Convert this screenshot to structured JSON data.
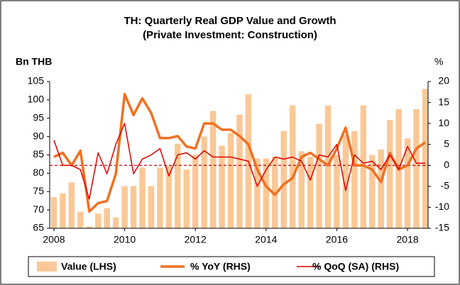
{
  "chart_data": {
    "type": "bar_line_combo",
    "title": "TH: Quarterly Real GDP Value and Growth",
    "subtitle": "(Private Investment: Construction)",
    "y_label": "Bn THB",
    "y2_label": "%",
    "x": [
      2008,
      2008.25,
      2008.5,
      2008.75,
      2009,
      2009.25,
      2009.5,
      2009.75,
      2010,
      2010.25,
      2010.5,
      2010.75,
      2011,
      2011.25,
      2011.5,
      2011.75,
      2012,
      2012.25,
      2012.5,
      2012.75,
      2013,
      2013.25,
      2013.5,
      2013.75,
      2014,
      2014.25,
      2014.5,
      2014.75,
      2015,
      2015.25,
      2015.5,
      2015.75,
      2016,
      2016.25,
      2016.5,
      2016.75,
      2017,
      2017.25,
      2017.5,
      2017.75,
      2018,
      2018.25,
      2018.5
    ],
    "xlim": [
      2007.88,
      2018.58
    ],
    "xticks": [
      2008,
      2010,
      2012,
      2014,
      2016,
      2018
    ],
    "ylim": [
      65,
      105
    ],
    "yticks": [
      65,
      70,
      75,
      80,
      85,
      90,
      95,
      100,
      105
    ],
    "y2lim": [
      -15,
      20
    ],
    "y2ticks": [
      -15,
      -10,
      -5,
      0,
      5,
      10,
      15,
      20
    ],
    "series": [
      {
        "name": "Value (LHS)",
        "kind": "bar",
        "color": "#fac896",
        "values": [
          73.5,
          74.5,
          77.5,
          69.5,
          65.5,
          69,
          70.5,
          68,
          76.5,
          76.5,
          81.5,
          76.5,
          81.5,
          82,
          88,
          81,
          85,
          90,
          97,
          87.5,
          91,
          96,
          101.5,
          84,
          84,
          84.5,
          91.5,
          98.5,
          86,
          84.5,
          93.5,
          98.5,
          85,
          90.5,
          91.5,
          98.5,
          85,
          86.5,
          94.5,
          97.5,
          89.5,
          97.5,
          103
        ]
      },
      {
        "name": "% YoY (RHS)",
        "kind": "line",
        "axis": "y2",
        "color": "#f07022",
        "values": [
          2,
          3,
          0,
          3.5,
          -11,
          -9,
          -8.5,
          -2,
          17,
          12,
          16,
          12.5,
          6.5,
          6.5,
          7,
          4.5,
          4,
          10,
          10,
          8.5,
          8.5,
          7,
          5,
          -1,
          -5,
          -7,
          -4.5,
          -3,
          2,
          3,
          1.5,
          0,
          4,
          9,
          0,
          0,
          -1,
          -4,
          3,
          -1,
          0,
          4,
          5.5
        ]
      },
      {
        "name": "% QoQ (SA) (RHS)",
        "kind": "line",
        "axis": "y2",
        "color": "#e00000",
        "values": [
          6,
          0,
          0,
          -1,
          -8,
          3,
          -2,
          5,
          10,
          -2,
          1.5,
          2.5,
          4,
          -2.5,
          2.5,
          3,
          1.5,
          3.5,
          2,
          2,
          2,
          1.5,
          1,
          -5,
          -1,
          2,
          1.5,
          2,
          1,
          -3.5,
          2.5,
          2,
          5,
          -6,
          2.5,
          0.5,
          1,
          -1,
          2.5,
          -1,
          4.5,
          0.5,
          0.5
        ]
      }
    ],
    "reference_line": {
      "axis": "y2",
      "value": 0,
      "color": "#d00000"
    }
  }
}
